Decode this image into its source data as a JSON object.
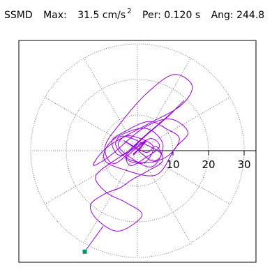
{
  "header": {
    "title": "SSMD",
    "max_label": "Max:",
    "max_value": "31.5",
    "max_unit": "cm/s",
    "max_exponent": "2",
    "per_label": "Per:",
    "per_value": "0.120",
    "per_unit": "s",
    "ang_label": "Ang:",
    "ang_value": "244.8"
  },
  "chart_data": {
    "type": "polar-orbit",
    "title": "SSMD",
    "radial_ticks": [
      10,
      20,
      30
    ],
    "radial_ticklabels": [
      "10",
      "20",
      "30"
    ],
    "angular_grid_step_deg": 30,
    "max_value": 31.5,
    "max_unit": "cm/s^2",
    "period_s": 0.12,
    "max_angle_deg": 244.8,
    "grid": true,
    "line_color": "#9400d3",
    "marker_color": "#009966",
    "orbit_x": [
      0,
      1.6,
      -1.2,
      2.4,
      -3.1,
      1.9,
      4.3,
      -2.6,
      -5.1,
      3.6,
      7.2,
      2.1,
      -6.8,
      -9.4,
      -4.2,
      5.3,
      10.6,
      14.2,
      9.1,
      1.3,
      -7.6,
      -12.4,
      -8.2,
      2.6,
      12.1,
      15.4,
      10.2,
      2.8,
      -4.4,
      -9.1,
      -6.3,
      1.4,
      8.6,
      13.1,
      9.2,
      2.1,
      -4.6,
      -7.2,
      -3.5,
      3.1,
      8.2,
      11.8,
      8.9,
      3.2,
      -2.8,
      -6.1,
      -4.2,
      1.3,
      6.6,
      4.2,
      -0.5,
      -3.8,
      -1.1,
      2.6,
      5.3,
      7.1,
      3.1,
      -1.6,
      -4.8,
      -9.1,
      -13.2,
      -11.1,
      -5.2,
      1.3,
      -3.2,
      -8.5,
      -11.8,
      -7.1,
      -1.2,
      3.6,
      6.2,
      2.1,
      -1.8,
      -3.2,
      -0.6,
      1.9,
      0.8,
      -1.1,
      0.3,
      0.6
    ],
    "orbit_y": [
      0,
      1.9,
      -1.3,
      2.6,
      -2.1,
      -3.4,
      1.4,
      4.2,
      0.8,
      -4.6,
      1.6,
      6.3,
      3.1,
      -2.3,
      -5.2,
      -6.8,
      0.7,
      5.2,
      8.9,
      6.1,
      -1.4,
      -4.1,
      1.2,
      7.3,
      12.6,
      18.2,
      21.4,
      16.3,
      8.2,
      1.1,
      -3.6,
      3.4,
      9.6,
      14.1,
      10.3,
      4.2,
      -1.3,
      2.6,
      5.4,
      8.2,
      6.1,
      3.4,
      -1.2,
      -3.4,
      -2.2,
      1.6,
      4.1,
      2.2,
      -0.8,
      -2.9,
      0.6,
      2.8,
      1.3,
      -0.5,
      1.2,
      -2.8,
      -5.6,
      -8.2,
      -10.4,
      -12.1,
      -15.3,
      -19.6,
      -22.6,
      -18.2,
      -14.6,
      -11.9,
      -7.4,
      -3.2,
      0.4,
      3.4,
      1.1,
      -2.1,
      -4.2,
      -1.6,
      1.3,
      2.4,
      0.6,
      -0.9,
      0.4,
      0.3
    ],
    "marker": {
      "x": -14.8,
      "y": -28.4
    }
  }
}
